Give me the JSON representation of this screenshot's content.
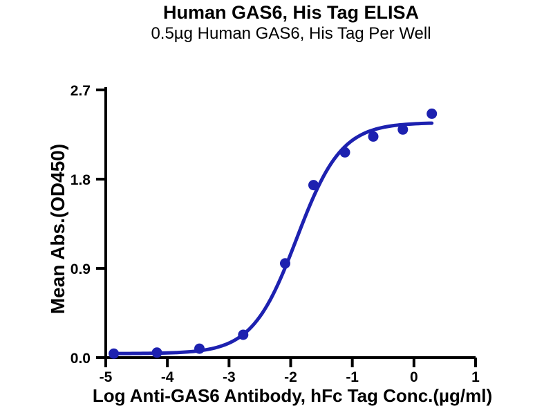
{
  "chart_data": {
    "type": "scatter",
    "title": "Human GAS6, His Tag ELISA",
    "subtitle": "0.5µg Human GAS6, His Tag Per Well",
    "xlabel": "Log Anti-GAS6 Antibody, hFc Tag Conc.(µg/ml)",
    "ylabel": "Mean Abs.(OD450)",
    "xlim": [
      -5,
      1
    ],
    "ylim": [
      0,
      2.7
    ],
    "x_ticks": [
      -5,
      -4,
      -3,
      -2,
      -1,
      0,
      1
    ],
    "y_ticks": [
      "0.0",
      "0.9",
      "1.8",
      "2.7"
    ],
    "grid": false,
    "legend": "none",
    "axis_color": "#000000",
    "series": [
      {
        "marker": "circle",
        "color": "#1d21b0",
        "x": [
          -4.87,
          -4.17,
          -3.48,
          -2.77,
          -2.09,
          -1.63,
          -1.12,
          -0.66,
          -0.18,
          0.29
        ],
        "y": [
          0.04,
          0.05,
          0.09,
          0.23,
          0.95,
          1.74,
          2.07,
          2.23,
          2.3,
          2.46
        ]
      }
    ],
    "fit_curve": {
      "model": "4PL sigmoid",
      "bottom": 0.04,
      "top": 2.37,
      "logEC50": -1.9,
      "hillslope": 1.2,
      "x_range": [
        -4.87,
        0.29
      ],
      "color": "#1d21b0"
    }
  }
}
